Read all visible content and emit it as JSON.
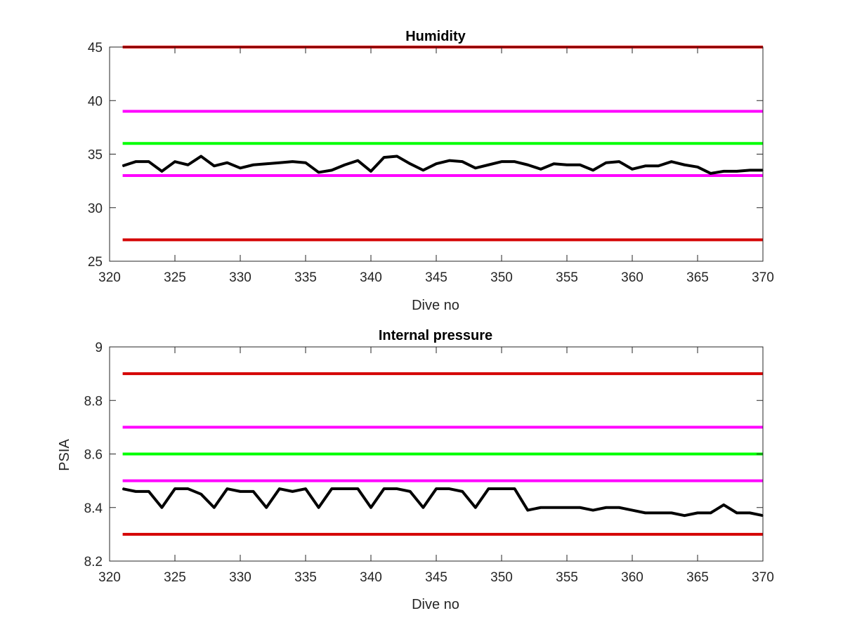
{
  "chart_data": [
    {
      "type": "line",
      "title": "Humidity",
      "xlabel": "Dive no",
      "ylabel": "",
      "xlim": [
        320,
        370
      ],
      "ylim": [
        25,
        45
      ],
      "xticks": [
        320,
        325,
        330,
        335,
        340,
        345,
        350,
        355,
        360,
        365,
        370
      ],
      "yticks": [
        25,
        30,
        35,
        40,
        45
      ],
      "grid": false,
      "limit_lines": [
        {
          "value": 45,
          "color": "#d40000"
        },
        {
          "value": 39,
          "color": "#ff00ff"
        },
        {
          "value": 36,
          "color": "#00ff00"
        },
        {
          "value": 33,
          "color": "#ff00ff"
        },
        {
          "value": 27,
          "color": "#d40000"
        }
      ],
      "series": [
        {
          "color": "#000000",
          "x": [
            321,
            322,
            323,
            324,
            325,
            326,
            327,
            328,
            329,
            330,
            331,
            332,
            333,
            334,
            335,
            336,
            337,
            338,
            339,
            340,
            341,
            342,
            343,
            344,
            345,
            346,
            347,
            348,
            349,
            350,
            351,
            352,
            353,
            354,
            355,
            356,
            357,
            358,
            359,
            360,
            361,
            362,
            363,
            364,
            365,
            366,
            367,
            368,
            369,
            370
          ],
          "y": [
            33.9,
            34.3,
            34.3,
            33.4,
            34.3,
            34.0,
            34.8,
            33.9,
            34.2,
            33.7,
            34.0,
            34.1,
            34.2,
            34.3,
            34.2,
            33.3,
            33.5,
            34.0,
            34.4,
            33.4,
            34.7,
            34.8,
            34.1,
            33.5,
            34.1,
            34.4,
            34.3,
            33.7,
            34.0,
            34.3,
            34.3,
            34.0,
            33.6,
            34.1,
            34.0,
            34.0,
            33.5,
            34.2,
            34.3,
            33.6,
            33.9,
            33.9,
            34.3,
            34.0,
            33.8,
            33.2,
            33.4,
            33.4,
            33.5,
            33.5
          ]
        }
      ]
    },
    {
      "type": "line",
      "title": "Internal pressure",
      "xlabel": "Dive no",
      "ylabel": "PSIA",
      "xlim": [
        320,
        370
      ],
      "ylim": [
        8.2,
        9
      ],
      "xticks": [
        320,
        325,
        330,
        335,
        340,
        345,
        350,
        355,
        360,
        365,
        370
      ],
      "yticks": [
        8.2,
        8.4,
        8.6,
        8.8,
        9
      ],
      "grid": false,
      "limit_lines": [
        {
          "value": 8.9,
          "color": "#d40000"
        },
        {
          "value": 8.7,
          "color": "#ff00ff"
        },
        {
          "value": 8.6,
          "color": "#00ff00"
        },
        {
          "value": 8.5,
          "color": "#ff00ff"
        },
        {
          "value": 8.3,
          "color": "#d40000"
        }
      ],
      "series": [
        {
          "color": "#000000",
          "x": [
            321,
            322,
            323,
            324,
            325,
            326,
            327,
            328,
            329,
            330,
            331,
            332,
            333,
            334,
            335,
            336,
            337,
            338,
            339,
            340,
            341,
            342,
            343,
            344,
            345,
            346,
            347,
            348,
            349,
            350,
            351,
            352,
            353,
            354,
            355,
            356,
            357,
            358,
            359,
            360,
            361,
            362,
            363,
            364,
            365,
            366,
            367,
            368,
            369,
            370
          ],
          "y": [
            8.47,
            8.46,
            8.46,
            8.4,
            8.47,
            8.47,
            8.45,
            8.4,
            8.47,
            8.46,
            8.46,
            8.4,
            8.47,
            8.46,
            8.47,
            8.4,
            8.47,
            8.47,
            8.47,
            8.4,
            8.47,
            8.47,
            8.46,
            8.4,
            8.47,
            8.47,
            8.46,
            8.4,
            8.47,
            8.47,
            8.47,
            8.39,
            8.4,
            8.4,
            8.4,
            8.4,
            8.39,
            8.4,
            8.4,
            8.39,
            8.38,
            8.38,
            8.38,
            8.37,
            8.38,
            8.38,
            8.41,
            8.38,
            8.38,
            8.37
          ]
        }
      ]
    }
  ]
}
